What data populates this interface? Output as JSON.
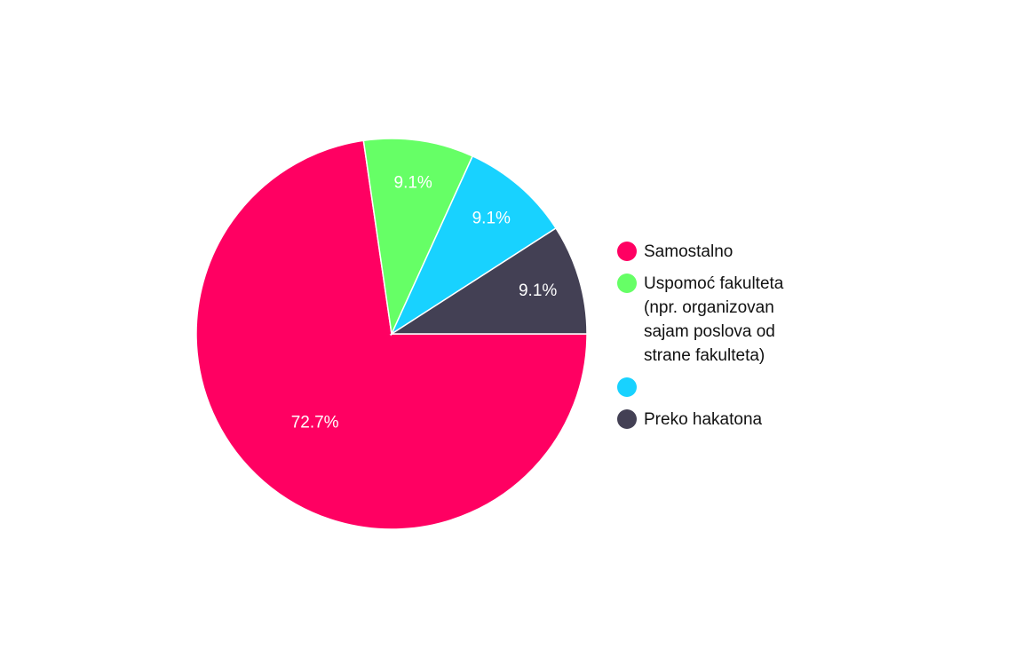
{
  "chart_data": {
    "type": "pie",
    "slices": [
      {
        "name": "Samostalno",
        "value": 72.7,
        "label": "72.7%",
        "color": "#ff0062"
      },
      {
        "name": "Uspomoć fakulteta (npr. organizovan sajam poslova od strane fakulteta)",
        "value": 9.1,
        "label": "9.1%",
        "color": "#66ff66"
      },
      {
        "name": "",
        "value": 9.1,
        "label": "9.1%",
        "color": "#18d2ff"
      },
      {
        "name": "Preko hakatona",
        "value": 9.1,
        "label": "9.1%",
        "color": "#434054"
      }
    ],
    "legend_position": "right"
  }
}
